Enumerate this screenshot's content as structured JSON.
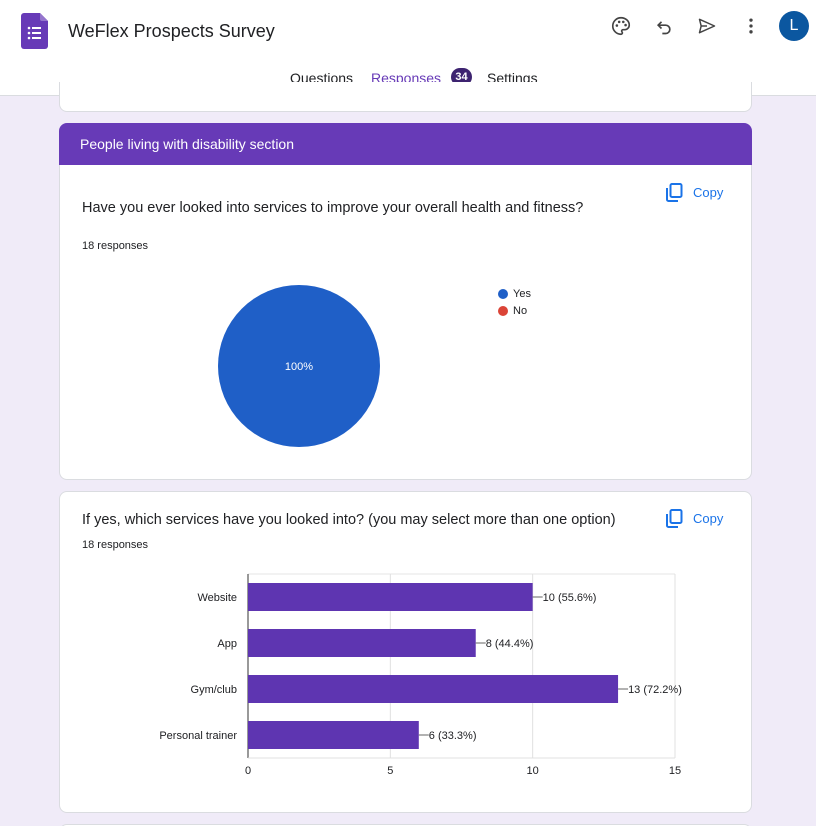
{
  "header": {
    "title": "WeFlex Prospects Survey",
    "avatar_initial": "L",
    "tabs": [
      {
        "label": "Questions"
      },
      {
        "label": "Responses",
        "badge": "34"
      },
      {
        "label": "Settings"
      }
    ]
  },
  "section": {
    "title": "People living with disability section"
  },
  "question1": {
    "text": "Have you ever looked into services to improve your overall health and fitness?",
    "responses": "18 responses",
    "copy_label": "Copy",
    "chart_data": {
      "type": "pie",
      "slices": [
        {
          "label": "Yes",
          "value": 100,
          "color": "#1f5fc7"
        },
        {
          "label": "No",
          "value": 0,
          "color": "#db4437"
        }
      ],
      "slice_label": "100%",
      "legend": "right"
    }
  },
  "question2": {
    "text": "If yes, which services have you looked into? (you may select more than one option)",
    "responses": "18 responses",
    "copy_label": "Copy",
    "chart_data": {
      "type": "bar",
      "orientation": "horizontal",
      "categories": [
        "Website",
        "App",
        "Gym/club",
        "Personal trainer"
      ],
      "values": [
        10,
        8,
        13,
        6
      ],
      "data_labels": [
        "10 (55.6%)",
        "8 (44.4%)",
        "13 (72.2%)",
        "6 (33.3%)"
      ],
      "xlim": [
        0,
        15
      ],
      "xticks": [
        "0",
        "5",
        "10",
        "15"
      ],
      "color": "#5e35b1",
      "grid": true
    }
  },
  "colors": {
    "accent": "#673ab7",
    "link": "#1a73e8",
    "background": "#f0ebf8"
  }
}
